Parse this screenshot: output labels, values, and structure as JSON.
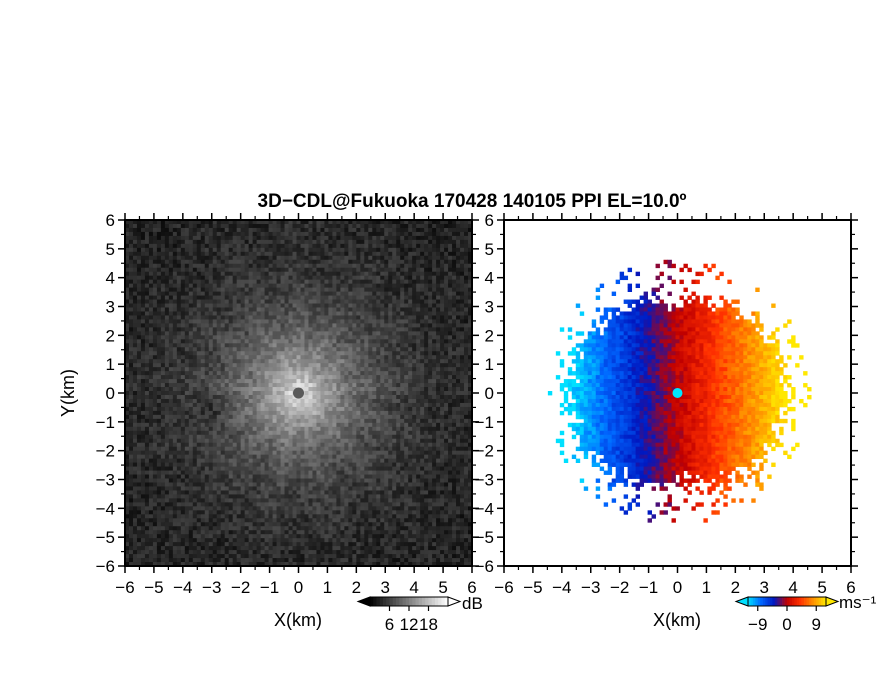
{
  "figure": {
    "title": "3D−CDL@Fukuoka 170428 140105 PPI EL=10.0º"
  },
  "chart_data": [
    {
      "type": "heatmap",
      "id": "snr",
      "quantity": "SNR (backscatter intensity), grayscale PPI scan",
      "xlabel": "X(km)",
      "ylabel": "Y(km)",
      "xlim": [
        -6,
        6
      ],
      "ylim": [
        -6,
        6
      ],
      "xticks": [
        "−6",
        "−5",
        "−4",
        "−3",
        "−2",
        "−1",
        "0",
        "1",
        "2",
        "3",
        "4",
        "5",
        "6"
      ],
      "yticks": [
        "−6",
        "−5",
        "−4",
        "−3",
        "−2",
        "−1",
        "0",
        "1",
        "2",
        "3",
        "4",
        "5",
        "6"
      ],
      "pattern": "bright near the radar at the origin, decreasing radially outward; dark blocked disk at origin (r≈0.2 km); dark patch near (−3, −0.7)",
      "colorbar": {
        "unit": "dB",
        "ticks": [
          "6",
          "12",
          "18"
        ],
        "tick_values": [
          6,
          12,
          18
        ],
        "range": [
          0,
          24
        ],
        "colors": [
          "#000000",
          "#ffffff"
        ]
      }
    },
    {
      "type": "heatmap",
      "id": "doppler",
      "quantity": "Radial (Doppler) velocity, PPI scan",
      "xlabel": "X(km)",
      "ylabel": "",
      "xlim": [
        -6,
        6
      ],
      "ylim": [
        -6,
        6
      ],
      "xticks": [
        "−6",
        "−5",
        "−4",
        "−3",
        "−2",
        "−1",
        "0",
        "1",
        "2",
        "3",
        "4",
        "5",
        "6"
      ],
      "yticks": [
        "−6",
        "−5",
        "−4",
        "−3",
        "−2",
        "−1",
        "0",
        "1",
        "2",
        "3",
        "4",
        "5",
        "6"
      ],
      "pattern": "negative (blue/cyan) velocities for X<0, positive (red/orange/yellow) for X>0; valid data within ~4.3 km radius; bright cyan marker at origin",
      "colorbar": {
        "unit": "ms⁻¹",
        "ticks": [
          "−9",
          "0",
          "9"
        ],
        "tick_values": [
          -9,
          0,
          9
        ],
        "range": [
          -12,
          12
        ],
        "colors": [
          "#00e0ff",
          "#0066ff",
          "#0018c0",
          "#c00000",
          "#ff3000",
          "#ff9000",
          "#ffe800"
        ]
      }
    }
  ]
}
